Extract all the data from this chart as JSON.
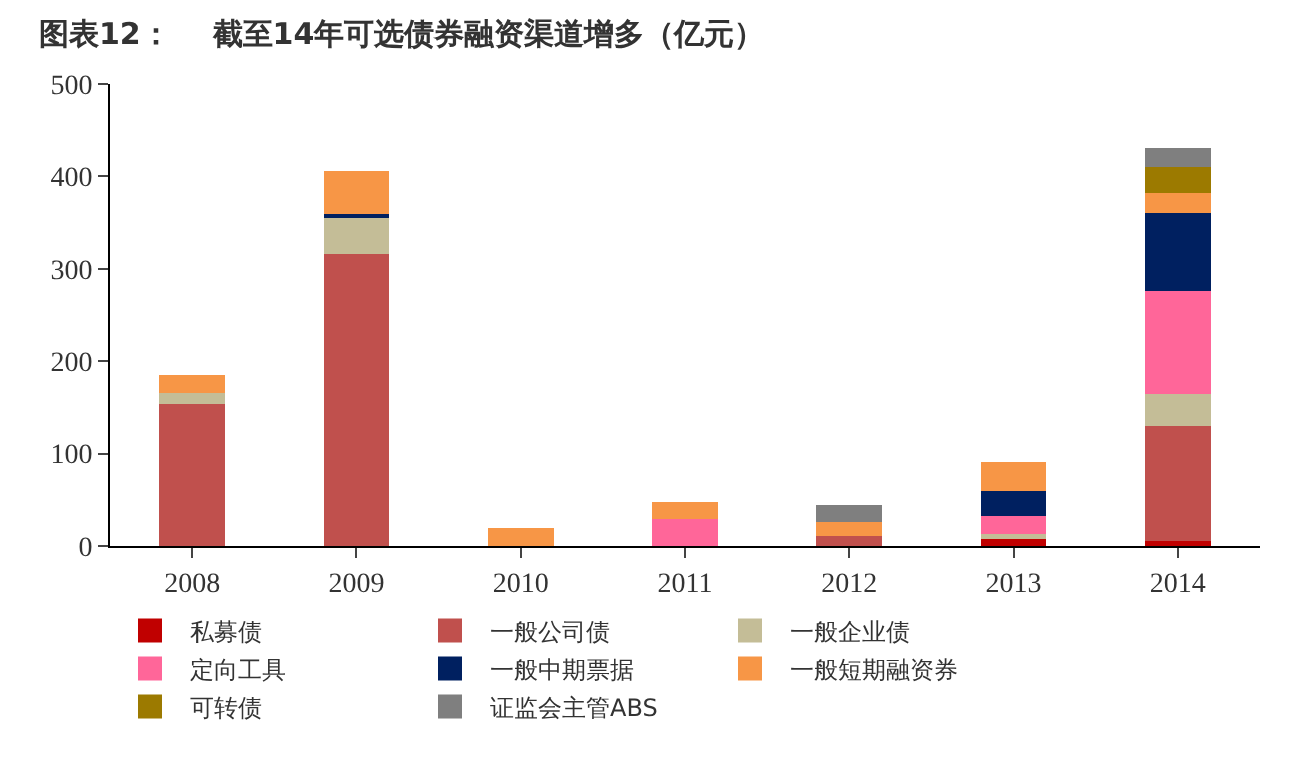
{
  "chart_data": {
    "type": "bar",
    "title": "图表12：    截至14年可选债券融资渠道增多（亿元）",
    "stacked": true,
    "categories": [
      "2008",
      "2009",
      "2010",
      "2011",
      "2012",
      "2013",
      "2014"
    ],
    "series": [
      {
        "name": "私募债",
        "color": "#c00000",
        "values": [
          0,
          0,
          0,
          0,
          0,
          8,
          5
        ]
      },
      {
        "name": "一般公司债",
        "color": "#c0504d",
        "values": [
          154,
          316,
          0,
          0,
          11,
          0,
          125
        ]
      },
      {
        "name": "一般企业债",
        "color": "#c4bd97",
        "values": [
          12,
          41,
          0,
          0,
          0,
          5,
          34
        ]
      },
      {
        "name": "定向工具",
        "color": "#ff6699",
        "values": [
          0,
          0,
          0,
          29,
          0,
          19,
          112
        ]
      },
      {
        "name": "一般中期票据",
        "color": "#002060",
        "values": [
          0,
          2,
          0,
          0,
          0,
          27,
          84
        ]
      },
      {
        "name": "一般短期融资券",
        "color": "#f79646",
        "values": [
          19,
          47,
          19,
          19,
          15,
          32,
          22
        ]
      },
      {
        "name": "可转债",
        "color": "#9c7a00",
        "values": [
          0,
          0,
          0,
          0,
          0,
          0,
          28
        ]
      },
      {
        "name": "证监会主管ABS",
        "color": "#7f7f7f",
        "values": [
          0,
          0,
          0,
          0,
          18,
          0,
          21
        ]
      }
    ],
    "ylim": [
      0,
      500
    ],
    "yticks": [
      0,
      100,
      200,
      300,
      400,
      500
    ],
    "legend": "bottom"
  }
}
